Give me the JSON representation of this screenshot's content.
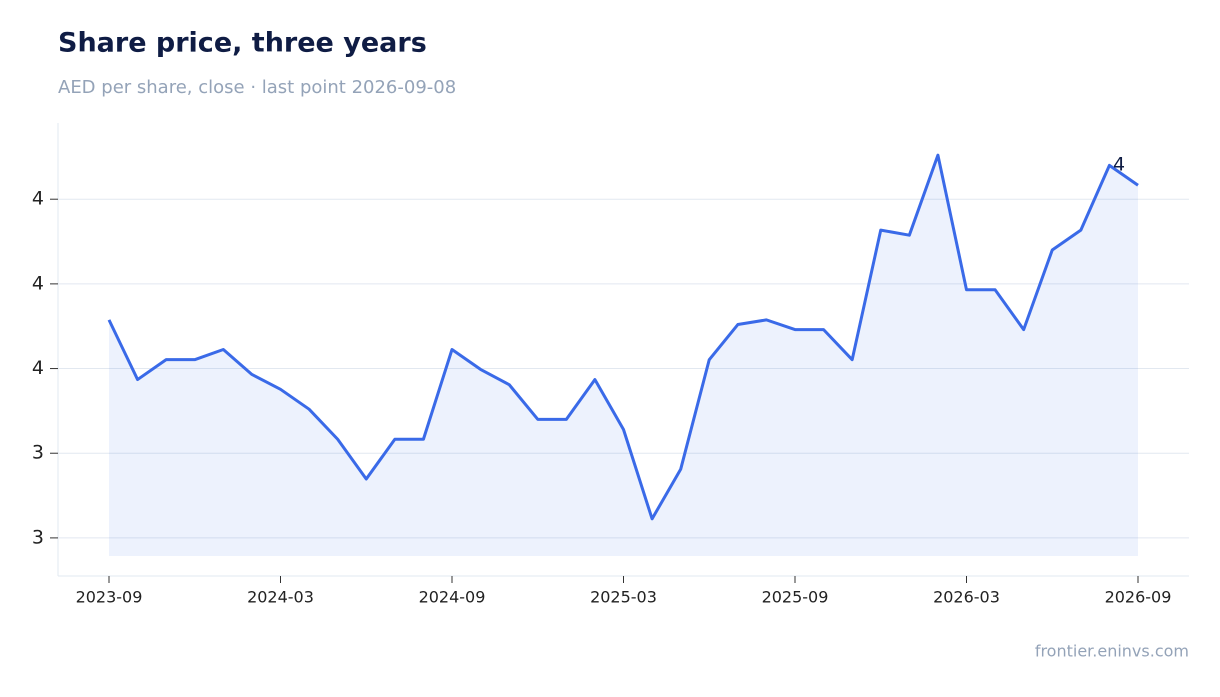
{
  "chart_data": {
    "type": "line",
    "title": "Share price, three years",
    "subtitle": "AED per share, close · last point 2026-09-08",
    "source": "frontier.eninvs.com",
    "last_value_label": "4",
    "color": "#3a6ae8",
    "x": [
      "2023-09",
      "2023-10",
      "2023-11",
      "2023-12",
      "2024-01",
      "2024-02",
      "2024-03",
      "2024-04",
      "2024-05",
      "2024-06",
      "2024-07",
      "2024-08",
      "2024-09",
      "2024-10",
      "2024-11",
      "2024-12",
      "2025-01",
      "2025-02",
      "2025-03",
      "2025-04",
      "2025-05",
      "2025-06",
      "2025-07",
      "2025-08",
      "2025-09",
      "2025-10",
      "2025-11",
      "2025-12",
      "2026-01",
      "2026-02",
      "2026-03",
      "2026-04",
      "2026-05",
      "2026-06",
      "2026-07",
      "2026-08",
      "2026-09"
    ],
    "values": [
      3.715,
      3.574,
      3.621,
      3.621,
      3.645,
      3.586,
      3.551,
      3.504,
      3.433,
      3.339,
      3.433,
      3.433,
      3.645,
      3.598,
      3.562,
      3.48,
      3.48,
      3.574,
      3.456,
      3.245,
      3.362,
      3.621,
      3.704,
      3.715,
      3.692,
      3.692,
      3.621,
      3.927,
      3.915,
      4.104,
      3.786,
      3.786,
      3.692,
      3.88,
      3.927,
      4.08,
      4.033
    ],
    "xticks": [
      "2023-09",
      "2024-03",
      "2024-09",
      "2025-03",
      "2025-09",
      "2026-03",
      "2026-09"
    ],
    "ylim": [
      3.11,
      4.18
    ],
    "yticks": [
      {
        "value": 3.2,
        "label": "3"
      },
      {
        "value": 3.4,
        "label": "3"
      },
      {
        "value": 3.6,
        "label": "4"
      },
      {
        "value": 3.8,
        "label": "4"
      },
      {
        "value": 4.0,
        "label": "4"
      }
    ],
    "grid": true
  }
}
